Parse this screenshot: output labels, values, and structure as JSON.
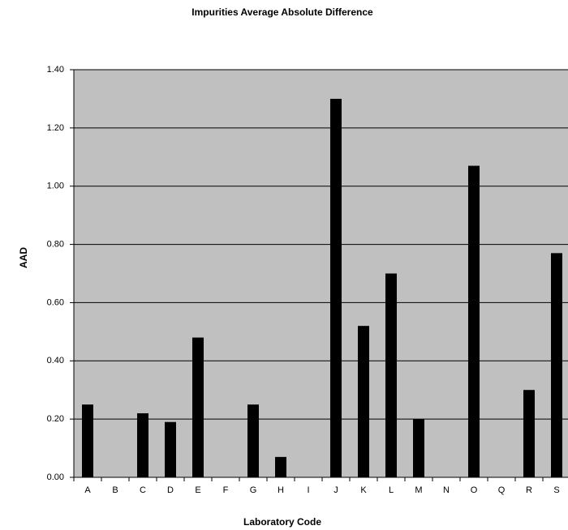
{
  "chart_data": {
    "type": "bar",
    "title": "Impurities Average Absolute Difference",
    "x_label": "Laboratory Code",
    "y_label": "AAD",
    "categories": [
      "A",
      "B",
      "C",
      "D",
      "E",
      "F",
      "G",
      "H",
      "I",
      "J",
      "K",
      "L",
      "M",
      "N",
      "O",
      "Q",
      "R",
      "S"
    ],
    "values": [
      0.25,
      null,
      0.22,
      0.19,
      0.48,
      null,
      0.25,
      0.07,
      null,
      1.3,
      0.52,
      0.7,
      0.2,
      null,
      1.07,
      null,
      0.3,
      0.77
    ],
    "color": "#000000",
    "ylim": [
      0,
      1.4
    ],
    "yticks": [
      {
        "value": 0,
        "label": "0.00"
      },
      {
        "value": 0.2,
        "label": "0.20"
      },
      {
        "value": 0.4,
        "label": "0.40"
      },
      {
        "value": 0.6,
        "label": "0.60"
      },
      {
        "value": 0.8,
        "label": "0.80"
      },
      {
        "value": 1.0,
        "label": "1.00"
      },
      {
        "value": 1.2,
        "label": "1.20"
      },
      {
        "value": 1.4,
        "label": "1.40"
      }
    ],
    "grid": true
  }
}
